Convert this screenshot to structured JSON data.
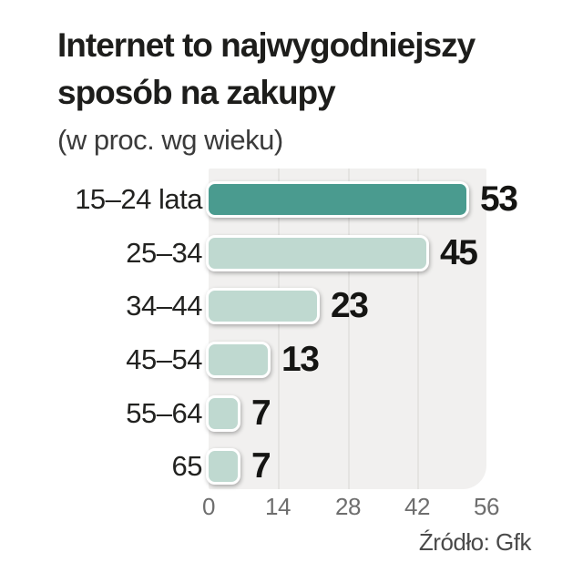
{
  "header": {
    "title_line1": "Internet to najwygodniejszy",
    "title_line2": "sposób na zakupy",
    "subtitle": "(w proc. wg wieku)"
  },
  "chart_data": {
    "type": "bar",
    "orientation": "horizontal",
    "title": "Internet to najwygodniejszy sposób na zakupy",
    "subtitle": "(w proc. wg wieku)",
    "categories": [
      "15–24 lata",
      "25–34",
      "34–44",
      "45–54",
      "55–64",
      "65"
    ],
    "values": [
      53,
      45,
      23,
      13,
      7,
      7
    ],
    "xlim": [
      0,
      56
    ],
    "xticks": [
      0,
      14,
      28,
      42,
      56
    ],
    "gridlines": [
      14,
      28,
      42
    ],
    "highlight_index": 0,
    "grid": true,
    "legend": false,
    "colors": {
      "highlight_bar": "#4a9b8f",
      "bar": "#bfd9d0",
      "bar_border": "#ffffff",
      "plot_background": "#f1f0ef",
      "gridline": "#e4e3e1",
      "value_label": "#151513",
      "tick_label": "#6e6e6e"
    }
  },
  "footer": {
    "source": "Źródło: Gfk"
  }
}
